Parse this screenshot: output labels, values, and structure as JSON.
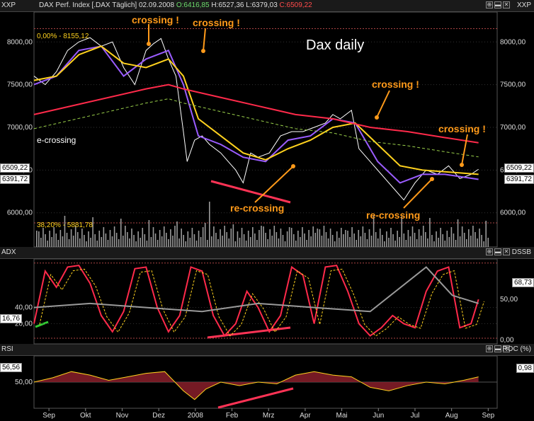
{
  "main_header": {
    "axis_left": "XXP",
    "axis_right": "XXP",
    "title": "DAX Perf. Index [.DAX Täglich] 02.09.2008",
    "open": "O:6416,85",
    "high": "H:6527,36",
    "low": "L:6379,03",
    "close": "C:6509,22"
  },
  "adx_header": {
    "axis_left": "ADX",
    "axis_right": "DSSB"
  },
  "rsi_header": {
    "axis_left": "RSI",
    "axis_right": "ROC (%)"
  },
  "window_buttons": [
    "⊕",
    "▬",
    "✕"
  ],
  "annotations": {
    "crossing_1": "crossing !",
    "crossing_2": "crossing !",
    "crossing_3": "crossing !",
    "crossing_4": "crossing !",
    "recrossing_1": "re-crossing",
    "recrossing_2": "re-crossing",
    "e_crossing": "e-crossing",
    "title": "Dax daily",
    "fib_top": "0,00% - 8155,12",
    "fib_bottom": "38,20% - 5881,78"
  },
  "value_labels": {
    "left_close": "6509,22",
    "left_ma": "6391,72",
    "right_close": "6509,22",
    "right_ma": "6391,72",
    "adx_value": "16,76",
    "dss_value": "68,73",
    "rsi_value": "56,56",
    "roc_value": "0,98"
  },
  "colors": {
    "price": "#ffffff",
    "ma_purple": "#9a5cff",
    "ma_yellow": "#ffd21e",
    "ma_red": "#ff2a4a",
    "ma_green": "#9ad04a",
    "volume": "#9a9a9a",
    "adx": "#ff2a4a",
    "dss": "#9a9a9a",
    "rsi_fill": "#8a1f2a",
    "trendline": "#ff3355",
    "annotation": "#ff9a1a"
  },
  "chart_data": [
    {
      "type": "line",
      "title": "DAX Perf. Index [.DAX Täglich] 02.09.2008",
      "x_tick_labels": [
        "Sep",
        "Okt",
        "Nov",
        "Dez",
        "2008",
        "Feb",
        "Mrz",
        "Apr",
        "Mai",
        "Jun",
        "Jul",
        "Aug",
        "Sep"
      ],
      "y_tick_labels": [
        "6000,00",
        "6500,00",
        "7000,00",
        "7500,00",
        "8000,00"
      ],
      "ylim": [
        5600,
        8350
      ],
      "series": [
        {
          "x": [
            0,
            0.3,
            0.6,
            0.9,
            1.2,
            1.5,
            1.8,
            2.1,
            2.4,
            2.7,
            3.0,
            3.2,
            3.4,
            3.6,
            3.8,
            4.0,
            4.1,
            4.3,
            4.5,
            4.7,
            5.0,
            5.2,
            5.4,
            5.6,
            5.8,
            6.0,
            6.3,
            6.6,
            6.9,
            7.2,
            7.5,
            7.8,
            8.0,
            8.2,
            8.5,
            8.7,
            9.0,
            9.3,
            9.6,
            9.9,
            10.2,
            10.5,
            10.8,
            11.1,
            11.4,
            11.7,
            11.9
          ],
          "values": [
            7600,
            7500,
            7650,
            7900,
            8000,
            8050,
            7950,
            8000,
            7700,
            7500,
            7900,
            7980,
            8040,
            7800,
            7600,
            6950,
            6600,
            6850,
            6900,
            6800,
            6700,
            6600,
            6500,
            6350,
            6700,
            6650,
            6700,
            6900,
            6950,
            6950,
            7000,
            7050,
            7150,
            7100,
            7200,
            6750,
            6600,
            6450,
            6300,
            6150,
            6350,
            6500,
            6450,
            6550,
            6400,
            6450,
            6509
          ]
        },
        {
          "x": [
            0,
            0.6,
            1.2,
            1.8,
            2.4,
            3.0,
            3.6,
            4.0,
            4.4,
            5.0,
            5.6,
            6.2,
            6.8,
            7.4,
            8.0,
            8.6,
            9.2,
            9.8,
            10.4,
            11.0,
            11.9
          ],
          "values": [
            7500,
            7600,
            7900,
            7950,
            7600,
            7800,
            7900,
            7500,
            6900,
            6800,
            6650,
            6600,
            6850,
            6900,
            7100,
            7050,
            6600,
            6350,
            6450,
            6450,
            6391
          ]
        },
        {
          "x": [
            0,
            0.6,
            1.2,
            1.8,
            2.4,
            3.0,
            3.6,
            4.0,
            4.4,
            5.0,
            5.6,
            6.2,
            6.8,
            7.4,
            8.0,
            8.6,
            9.2,
            9.8,
            10.4,
            11.0,
            11.9
          ],
          "values": [
            7550,
            7600,
            7850,
            7950,
            7750,
            7700,
            7800,
            7600,
            7100,
            6900,
            6700,
            6620,
            6750,
            6850,
            7000,
            7050,
            6800,
            6550,
            6500,
            6480,
            6450
          ]
        },
        {
          "x": [
            0,
            1.5,
            3.0,
            3.6,
            4.0,
            5.0,
            6.0,
            7.0,
            8.0,
            9.0,
            10.0,
            11.0,
            11.9
          ],
          "values": [
            7150,
            7300,
            7450,
            7500,
            7450,
            7350,
            7250,
            7150,
            7100,
            7000,
            6950,
            6880,
            6820
          ]
        }
      ]
    },
    {
      "type": "line",
      "title": "ADX / DSSB",
      "y_tick_labels": [
        "20,00",
        "40,00"
      ],
      "y_tick_labels_right": [
        "0,00",
        "50,00"
      ],
      "ylim": [
        -5,
        100
      ],
      "series": [
        {
          "x": [
            0,
            0.3,
            0.6,
            0.9,
            1.2,
            1.5,
            1.8,
            2.1,
            2.4,
            2.7,
            3.0,
            3.3,
            3.6,
            3.9,
            4.2,
            4.5,
            4.8,
            5.1,
            5.4,
            5.7,
            6.0,
            6.3,
            6.6,
            6.9,
            7.2,
            7.5,
            7.8,
            8.1,
            8.4,
            8.7,
            9.0,
            9.3,
            9.6,
            9.9,
            10.2,
            10.5,
            10.8,
            11.1,
            11.4,
            11.7,
            11.9
          ],
          "values": [
            20,
            85,
            65,
            90,
            92,
            70,
            30,
            10,
            35,
            88,
            90,
            40,
            10,
            30,
            90,
            85,
            30,
            5,
            20,
            60,
            40,
            10,
            30,
            90,
            80,
            20,
            90,
            92,
            60,
            20,
            5,
            15,
            30,
            20,
            15,
            60,
            85,
            90,
            15,
            20,
            50
          ]
        },
        {
          "x": [
            0,
            1.5,
            3.0,
            4.5,
            6.0,
            7.5,
            9.0,
            10.5,
            11.2,
            11.9
          ],
          "values": [
            40,
            45,
            40,
            35,
            45,
            40,
            35,
            90,
            55,
            45
          ]
        }
      ]
    },
    {
      "type": "area",
      "title": "RSI / ROC (%)",
      "y_tick_labels": [
        "50,00"
      ],
      "ylim": [
        20,
        80
      ],
      "series": [
        {
          "x": [
            0,
            0.5,
            1.0,
            1.5,
            2.0,
            2.5,
            3.0,
            3.5,
            4.0,
            4.3,
            4.6,
            5.0,
            5.5,
            6.0,
            6.5,
            7.0,
            7.5,
            8.0,
            8.5,
            9.0,
            9.5,
            10.0,
            10.5,
            11.0,
            11.5,
            11.9
          ],
          "values": [
            50,
            55,
            62,
            58,
            52,
            56,
            60,
            62,
            40,
            30,
            42,
            50,
            46,
            50,
            48,
            58,
            62,
            58,
            56,
            44,
            40,
            46,
            50,
            48,
            52,
            56
          ]
        }
      ]
    }
  ]
}
